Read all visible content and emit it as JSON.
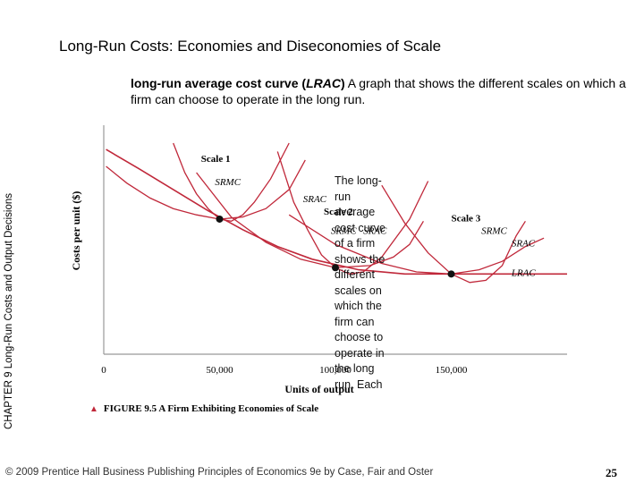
{
  "slide": {
    "title": "Long-Run Costs: Economies and Diseconomies of Scale",
    "definition_term": "long-run average cost curve (",
    "definition_abbr": "LRAC",
    "definition_close": ")",
    "definition_text": "A graph that shows the different scales on which a firm can choose to operate in the long run.",
    "side_label": "CHAPTER 9 Long-Run Costs and Output Decisions",
    "overlay_text": "The long-run average cost curve of a firm shows the different scales on which the firm can choose to operate in the long run. Each",
    "figure_caption": "FIGURE 9.5 A Firm Exhibiting Economies of Scale",
    "footer": "© 2009 Prentice Hall Business Publishing   Principles of Economics 9e by Case, Fair and Oster",
    "page_number": "25",
    "colors": {
      "curve": "#c0283a",
      "axis": "#999999",
      "point": "#111111"
    }
  },
  "chart_data": {
    "type": "line",
    "xlabel": "Units of output",
    "ylabel": "Costs per unit ($)",
    "xticks": [
      {
        "value": 0,
        "label": "0"
      },
      {
        "value": 50000,
        "label": "50,000"
      },
      {
        "value": 100000,
        "label": "100,000"
      },
      {
        "value": 150000,
        "label": "150,000"
      }
    ],
    "xlim": [
      0,
      200000
    ],
    "ylim": [
      0,
      10
    ],
    "scales": [
      {
        "name": "Scale 1",
        "label_pos": [
          42000,
          9.1
        ],
        "optimum": [
          50000,
          6.4
        ]
      },
      {
        "name": "Scale 2",
        "label_pos": [
          95000,
          6.6
        ],
        "optimum": [
          100000,
          4.1
        ]
      },
      {
        "name": "Scale 3",
        "label_pos": [
          150000,
          6.3
        ],
        "optimum": [
          150000,
          3.8
        ]
      }
    ],
    "series": [
      {
        "name": "SRMC",
        "label_pos": [
          48000,
          8.0
        ],
        "points": [
          [
            30000,
            10.0
          ],
          [
            35000,
            8.6
          ],
          [
            40000,
            7.6
          ],
          [
            45000,
            6.9
          ],
          [
            50000,
            6.4
          ],
          [
            55000,
            6.3
          ],
          [
            60000,
            6.6
          ],
          [
            65000,
            7.2
          ],
          [
            72000,
            8.3
          ],
          [
            80000,
            10.0
          ]
        ]
      },
      {
        "name": "SRAC",
        "label_pos": [
          86000,
          7.2
        ],
        "points": [
          [
            1000,
            8.9
          ],
          [
            10000,
            8.1
          ],
          [
            20000,
            7.4
          ],
          [
            30000,
            6.9
          ],
          [
            40000,
            6.6
          ],
          [
            50000,
            6.4
          ],
          [
            60000,
            6.5
          ],
          [
            70000,
            6.9
          ],
          [
            80000,
            7.8
          ],
          [
            87000,
            9.2
          ]
        ]
      },
      {
        "name": "SRMC",
        "label_pos": [
          98000,
          5.7
        ],
        "points": [
          [
            75000,
            9.6
          ],
          [
            82000,
            7.2
          ],
          [
            88000,
            5.9
          ],
          [
            94000,
            4.7
          ],
          [
            100000,
            4.1
          ],
          [
            106000,
            3.8
          ],
          [
            112000,
            3.9
          ],
          [
            120000,
            4.6
          ],
          [
            132000,
            6.4
          ],
          [
            140000,
            8.2
          ]
        ]
      },
      {
        "name": "SRAC",
        "label_pos": [
          112000,
          5.7
        ],
        "points": [
          [
            40000,
            8.6
          ],
          [
            55000,
            6.5
          ],
          [
            70000,
            5.3
          ],
          [
            85000,
            4.5
          ],
          [
            100000,
            4.1
          ],
          [
            115000,
            4.2
          ],
          [
            125000,
            4.6
          ],
          [
            132000,
            5.2
          ],
          [
            138000,
            6.3
          ]
        ]
      },
      {
        "name": "SRMC",
        "label_pos": [
          163000,
          5.7
        ],
        "points": [
          [
            120000,
            8.0
          ],
          [
            130000,
            6.2
          ],
          [
            140000,
            4.8
          ],
          [
            150000,
            3.8
          ],
          [
            158000,
            3.4
          ],
          [
            165000,
            3.5
          ],
          [
            172000,
            4.2
          ],
          [
            178000,
            5.6
          ],
          [
            182000,
            6.3
          ]
        ]
      },
      {
        "name": "SRAC",
        "label_pos": [
          176000,
          5.1
        ],
        "points": [
          [
            80000,
            6.6
          ],
          [
            100000,
            5.2
          ],
          [
            120000,
            4.3
          ],
          [
            135000,
            3.9
          ],
          [
            150000,
            3.8
          ],
          [
            162000,
            4.0
          ],
          [
            172000,
            4.4
          ],
          [
            182000,
            5.1
          ],
          [
            190000,
            5.5
          ]
        ]
      },
      {
        "name": "LRAC",
        "label_pos": [
          176000,
          3.7
        ],
        "points": [
          [
            1000,
            9.7
          ],
          [
            15000,
            8.8
          ],
          [
            30000,
            7.8
          ],
          [
            45000,
            6.8
          ],
          [
            60000,
            5.9
          ],
          [
            75000,
            5.1
          ],
          [
            90000,
            4.5
          ],
          [
            110000,
            4.0
          ],
          [
            130000,
            3.8
          ],
          [
            150000,
            3.8
          ],
          [
            175000,
            3.8
          ],
          [
            200000,
            3.8
          ]
        ]
      }
    ]
  }
}
